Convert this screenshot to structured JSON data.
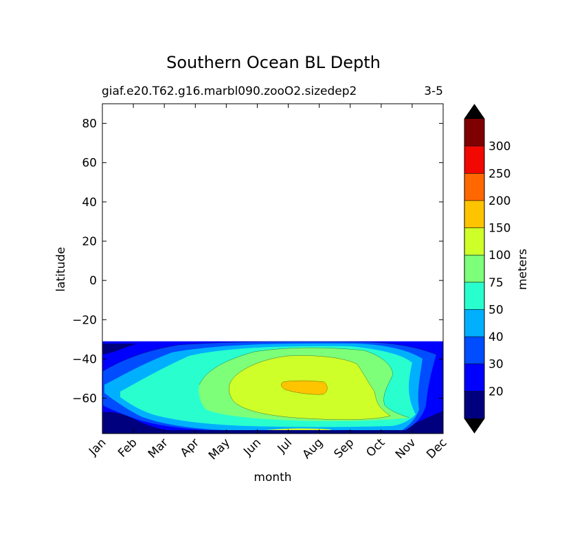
{
  "chart_data": {
    "type": "filled-contour",
    "title": "Southern Ocean BL Depth",
    "subtitle_left": "giaf.e20.T62.g16.marbl090.zooO2.sizedep2",
    "subtitle_right": "3-5",
    "xlabel": "month",
    "ylabel": "latitude",
    "x_ticks": [
      "Jan",
      "Feb",
      "Mar",
      "Apr",
      "May",
      "Jun",
      "Jul",
      "Aug",
      "Sep",
      "Oct",
      "Nov",
      "Dec"
    ],
    "y_ticks": [
      80,
      60,
      40,
      20,
      0,
      -20,
      -40,
      -60
    ],
    "y_tick_labels": [
      "80",
      "60",
      "40",
      "20",
      "0",
      "−20",
      "−40",
      "−60"
    ],
    "ylim": [
      -78,
      90
    ],
    "data_lat_range": [
      -78,
      -31
    ],
    "colorbar": {
      "label": "meters",
      "extend": "both",
      "levels": [
        "20",
        "30",
        "40",
        "50",
        "75",
        "100",
        "150",
        "200",
        "250",
        "300"
      ],
      "colors": [
        "#00007f",
        "#0000ff",
        "#004cff",
        "#00b0ff",
        "#29ffce",
        "#7dff7a",
        "#ceff29",
        "#ffc400",
        "#ff6800",
        "#f10800",
        "#7f0000"
      ],
      "under_color": "#000000",
      "over_color": "#000000"
    },
    "contour_regions": [
      {
        "level_index": 1,
        "value_range": "20-30",
        "desc": "outer band"
      },
      {
        "level_index": 2,
        "value_range": "30-40"
      },
      {
        "level_index": 3,
        "value_range": "40-50"
      },
      {
        "level_index": 4,
        "value_range": "50-75"
      },
      {
        "level_index": 5,
        "value_range": "75-100"
      },
      {
        "level_index": 6,
        "value_range": "100-150",
        "peak_months": "Jul-Sep",
        "lat_center": -58
      },
      {
        "level_index": 7,
        "value_range": "150-200",
        "months": "Jul-Aug",
        "lat_center": -57
      }
    ]
  }
}
